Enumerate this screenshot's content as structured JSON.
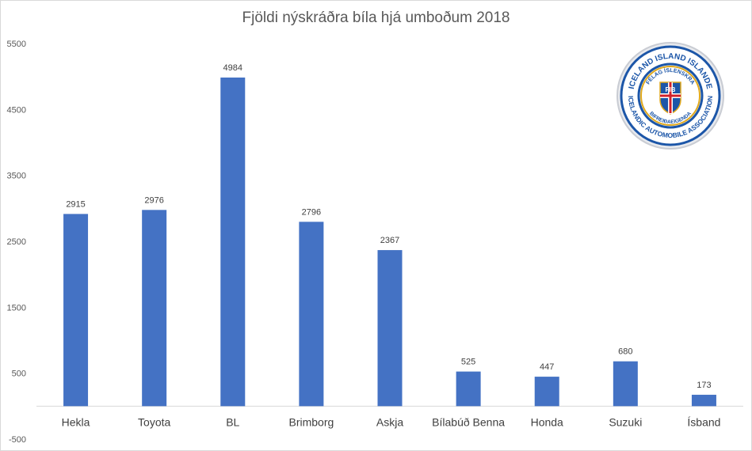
{
  "chart_data": {
    "type": "bar",
    "title": "Fjöldi nýskráðra bíla hjá umboðum 2018",
    "xlabel": "",
    "ylabel": "",
    "categories": [
      "Hekla",
      "Toyota",
      "BL",
      "Brimborg",
      "Askja",
      "Bílabúð Benna",
      "Honda",
      "Suzuki",
      "Ísband"
    ],
    "values": [
      2915,
      2976,
      4984,
      2796,
      2367,
      525,
      447,
      680,
      173
    ],
    "yticks": [
      -500,
      500,
      1500,
      2500,
      3500,
      4500,
      5500
    ],
    "ylim": [
      -500,
      5500
    ],
    "grid": false,
    "legend": "none",
    "bar_color": "#4472c4"
  },
  "logo": {
    "ring_top_text": "ICELAND ISLAND ISLANDE",
    "ring_bottom_text": "ICELANDIC AUTOMOBILE ASSOCIATION",
    "inner_top_text": "FÉLAG ÍSLENSKRA",
    "inner_bottom_text": "BIFREIÐAEIGENDA",
    "shield_text": "FIB"
  }
}
